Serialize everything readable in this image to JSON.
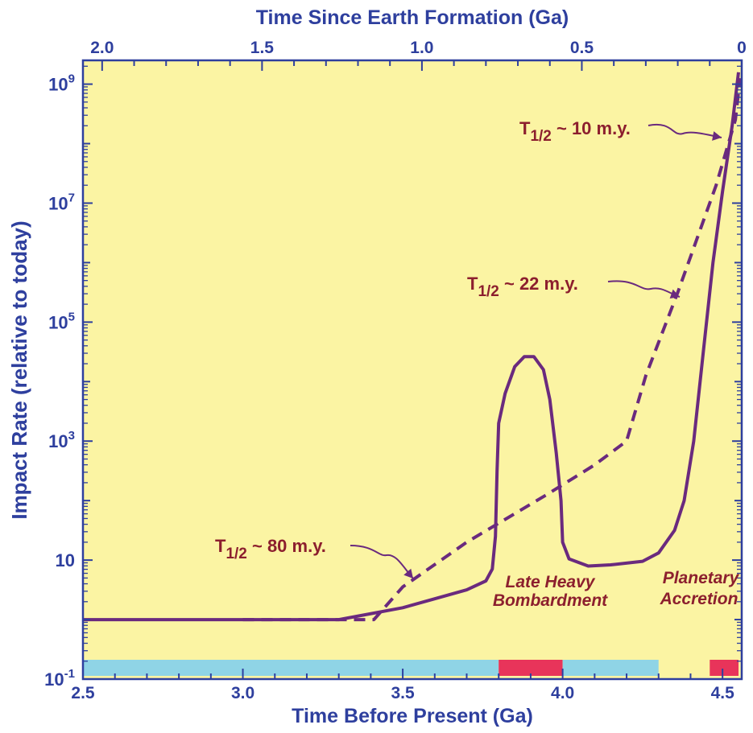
{
  "chart_data": {
    "type": "line",
    "xlabel_bottom": "Time Before Present (Ga)",
    "xlabel_top": "Time Since Earth Formation (Ga)",
    "ylabel": "Impact Rate (relative to today)",
    "xlim": [
      2.5,
      4.56
    ],
    "ylim_log10": [
      -1,
      9.4
    ],
    "y_scale": "log",
    "x_ticks_bottom": [
      {
        "value": 2.5,
        "label": "2.5"
      },
      {
        "value": 3.0,
        "label": "3.0"
      },
      {
        "value": 3.5,
        "label": "3.5"
      },
      {
        "value": 4.0,
        "label": "4.0"
      },
      {
        "value": 4.5,
        "label": "4.5"
      }
    ],
    "x_ticks_top": [
      {
        "value": 2.56,
        "label": "2.0"
      },
      {
        "value": 3.06,
        "label": "1.5"
      },
      {
        "value": 3.56,
        "label": "1.0"
      },
      {
        "value": 4.06,
        "label": "0.5"
      },
      {
        "value": 4.56,
        "label": "0"
      }
    ],
    "y_ticks": [
      {
        "value": 9,
        "base": "10",
        "exp": "9"
      },
      {
        "value": 7,
        "base": "10",
        "exp": "7"
      },
      {
        "value": 5,
        "base": "10",
        "exp": "5"
      },
      {
        "value": 3,
        "base": "10",
        "exp": "3"
      },
      {
        "value": 1,
        "base": "10",
        "exp": ""
      },
      {
        "value": -1,
        "base": "10",
        "exp": "-1"
      }
    ],
    "series": [
      {
        "style": "solid",
        "color": "#6a2a7e",
        "points": [
          [
            2.5,
            -0.0
          ],
          [
            3.0,
            -0.0
          ],
          [
            3.3,
            0.0
          ],
          [
            3.5,
            0.2
          ],
          [
            3.6,
            0.35
          ],
          [
            3.7,
            0.5
          ],
          [
            3.76,
            0.65
          ],
          [
            3.78,
            0.85
          ],
          [
            3.79,
            1.4
          ],
          [
            3.795,
            2.5
          ],
          [
            3.8,
            3.3
          ],
          [
            3.82,
            3.8
          ],
          [
            3.85,
            4.25
          ],
          [
            3.88,
            4.42
          ],
          [
            3.91,
            4.42
          ],
          [
            3.94,
            4.2
          ],
          [
            3.96,
            3.7
          ],
          [
            3.98,
            2.8
          ],
          [
            3.995,
            2.0
          ],
          [
            4.0,
            1.3
          ],
          [
            4.02,
            1.02
          ],
          [
            4.08,
            0.9
          ],
          [
            4.15,
            0.92
          ],
          [
            4.25,
            0.98
          ],
          [
            4.3,
            1.12
          ],
          [
            4.35,
            1.5
          ],
          [
            4.38,
            2.0
          ],
          [
            4.41,
            3.0
          ],
          [
            4.44,
            4.5
          ],
          [
            4.47,
            6.0
          ],
          [
            4.5,
            7.2
          ],
          [
            4.53,
            8.3
          ],
          [
            4.55,
            9.2
          ]
        ]
      },
      {
        "style": "dashed",
        "color": "#6a2a7e",
        "points": [
          [
            3.0,
            0.0
          ],
          [
            3.3,
            0.0
          ],
          [
            3.41,
            0.0
          ],
          [
            3.5,
            0.55
          ],
          [
            3.7,
            1.3
          ],
          [
            3.95,
            2.1
          ],
          [
            4.1,
            2.6
          ],
          [
            4.2,
            3.0
          ],
          [
            4.26,
            4.1
          ],
          [
            4.36,
            5.5
          ],
          [
            4.48,
            7.3
          ],
          [
            4.54,
            8.4
          ],
          [
            4.555,
            9.1
          ]
        ]
      }
    ],
    "annotations": [
      {
        "prefix": "T",
        "sub": "1/2",
        "suffix": " ~ 10 m.y.",
        "target_x": 4.51,
        "target_y": 7.85
      },
      {
        "prefix": "T",
        "sub": "1/2",
        "suffix": " ~ 22 m.y.",
        "target_x": 4.35,
        "target_y": 5.35
      },
      {
        "prefix": "T",
        "sub": "1/2",
        "suffix": " ~ 80 m.y.",
        "target_x": 3.53,
        "target_y": 0.75
      }
    ],
    "region_labels": [
      {
        "lines": [
          "Late Heavy",
          "Bombardment"
        ]
      },
      {
        "lines": [
          "Planetary",
          "Accretion"
        ]
      }
    ],
    "bars": [
      {
        "start": 2.5,
        "end": 3.8,
        "color": "#8fd4e6"
      },
      {
        "start": 3.8,
        "end": 4.0,
        "color": "#e8345a"
      },
      {
        "start": 4.0,
        "end": 4.3,
        "color": "#8fd4e6"
      },
      {
        "start": 4.46,
        "end": 4.55,
        "color": "#e8345a"
      }
    ],
    "colors": {
      "plot_background": "#fbf4a3",
      "axis": "#2e3f9e",
      "curve": "#6a2a7e",
      "annotation": "#8c1f2e"
    }
  }
}
